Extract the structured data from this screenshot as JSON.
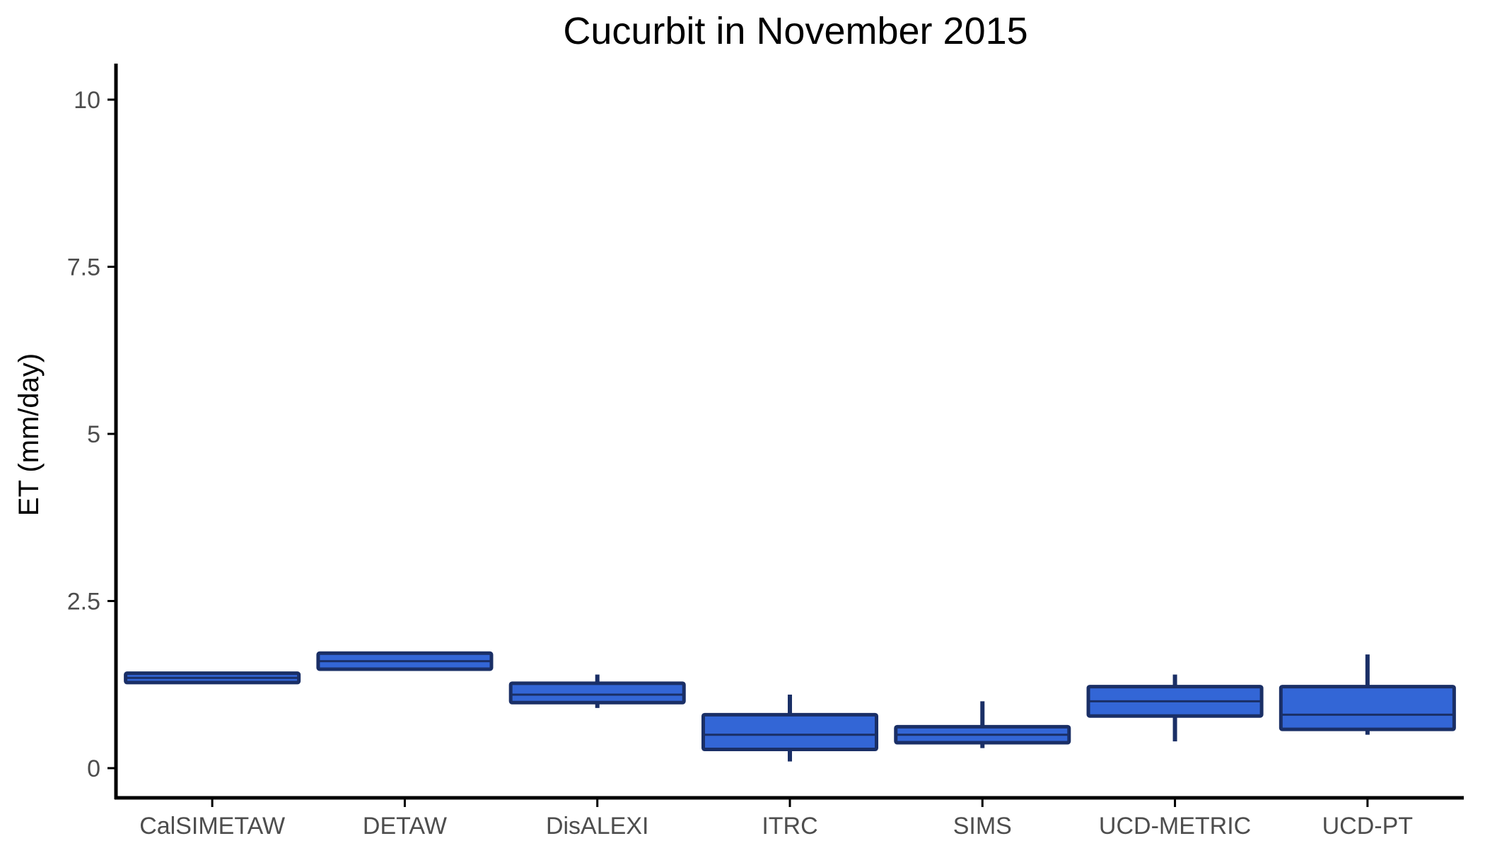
{
  "colors": {
    "box_fill": "#3366d6",
    "box_stroke": "#1a2f66",
    "axis": "#000000",
    "tick_text": "#4d4d4d"
  },
  "chart_data": {
    "type": "boxplot",
    "title": "Cucurbit in November 2015",
    "xlabel": "",
    "ylabel": "ET (mm/day)",
    "ylim": [
      -0.5,
      10.5
    ],
    "yticks": [
      0,
      2.5,
      5,
      7.5,
      10
    ],
    "ytick_labels": [
      "0",
      "2.5",
      "5",
      "7.5",
      "10"
    ],
    "grid": false,
    "categories": [
      "CalSIMETAW",
      "DETAW",
      "DisALEXI",
      "ITRC",
      "SIMS",
      "UCD-METRIC",
      "UCD-PT"
    ],
    "boxes": [
      {
        "category": "CalSIMETAW",
        "min": 1.28,
        "q1": 1.28,
        "median": 1.35,
        "q3": 1.42,
        "max": 1.42
      },
      {
        "category": "DETAW",
        "min": 1.48,
        "q1": 1.48,
        "median": 1.6,
        "q3": 1.72,
        "max": 1.72
      },
      {
        "category": "DisALEXI",
        "min": 0.9,
        "q1": 0.98,
        "median": 1.1,
        "q3": 1.27,
        "max": 1.4
      },
      {
        "category": "ITRC",
        "min": 0.1,
        "q1": 0.28,
        "median": 0.5,
        "q3": 0.8,
        "max": 1.1
      },
      {
        "category": "SIMS",
        "min": 0.3,
        "q1": 0.38,
        "median": 0.5,
        "q3": 0.62,
        "max": 1.0
      },
      {
        "category": "UCD-METRIC",
        "min": 0.4,
        "q1": 0.78,
        "median": 1.0,
        "q3": 1.22,
        "max": 1.4
      },
      {
        "category": "UCD-PT",
        "min": 0.5,
        "q1": 0.58,
        "median": 0.8,
        "q3": 1.22,
        "max": 1.7
      }
    ]
  }
}
